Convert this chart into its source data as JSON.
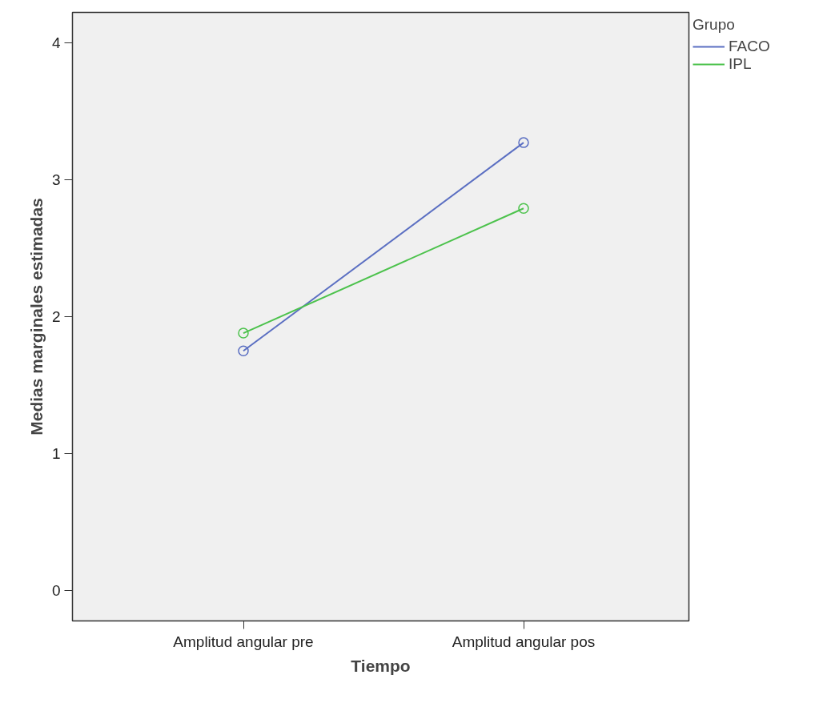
{
  "chart_data": {
    "type": "line",
    "xlabel": "Tiempo",
    "ylabel": "Medias marginales estimadas",
    "legend_title": "Grupo",
    "categories": [
      "Amplitud angular pre",
      "Amplitud angular pos"
    ],
    "series": [
      {
        "name": "FACO",
        "color": "#5b6fc2",
        "values": [
          1.75,
          3.27
        ]
      },
      {
        "name": "IPL",
        "color": "#4cc24c",
        "values": [
          1.88,
          2.79
        ]
      }
    ],
    "ylim": [
      -0.22,
      4.22
    ],
    "yticks": [
      0,
      1,
      2,
      3,
      4
    ],
    "grid": false,
    "legend": "top right",
    "marker": "circle",
    "line_style": "solid"
  }
}
